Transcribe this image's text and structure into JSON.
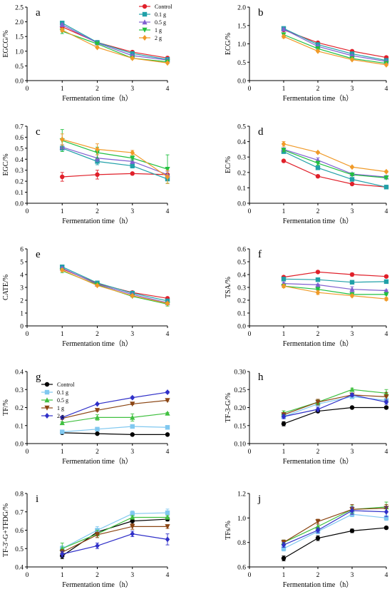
{
  "figure": {
    "title": "",
    "xlabel_common": "Fermentation time（h）"
  },
  "legend_top": {
    "items": [
      {
        "name": "Control",
        "color": "#e0202a",
        "marker": "circle"
      },
      {
        "name": "0.1 g",
        "color": "#20a0a8",
        "marker": "square"
      },
      {
        "name": "0.5 g",
        "color": "#8060d0",
        "marker": "triangle-up"
      },
      {
        "name": "1 g",
        "color": "#20c040",
        "marker": "triangle-down"
      },
      {
        "name": "2 g",
        "color": "#f09a28",
        "marker": "diamond"
      }
    ]
  },
  "legend_bottom": {
    "items": [
      {
        "name": "Control",
        "color": "#000000",
        "marker": "circle"
      },
      {
        "name": "0.1 g",
        "color": "#80c8f0",
        "marker": "square"
      },
      {
        "name": "0.5 g",
        "color": "#40c040",
        "marker": "triangle-up"
      },
      {
        "name": "1 g",
        "color": "#8b4513",
        "marker": "triangle-down"
      },
      {
        "name": "2 g",
        "color": "#3030c8",
        "marker": "diamond"
      }
    ]
  },
  "chart_data": [
    {
      "panel": "a",
      "type": "line",
      "palette": "top",
      "xlabel": "Fermentation time（h）",
      "ylabel": "EGCG/%",
      "xlim": [
        0,
        4
      ],
      "xticks": [
        0,
        1,
        2,
        3,
        4
      ],
      "ylim": [
        0,
        2.5
      ],
      "yticks": [
        0,
        0.5,
        1.0,
        1.5,
        2.0,
        2.5
      ],
      "ydecimals": 1,
      "x": [
        1,
        2,
        3,
        4
      ],
      "series": [
        {
          "name": "Control",
          "values": [
            1.83,
            1.3,
            0.97,
            0.77
          ],
          "err": [
            0.06,
            0.03,
            0.03,
            0.02
          ]
        },
        {
          "name": "0.1 g",
          "values": [
            1.96,
            1.3,
            0.92,
            0.72
          ],
          "err": [
            0.04,
            0.03,
            0.03,
            0.02
          ]
        },
        {
          "name": "0.5 g",
          "values": [
            1.9,
            1.28,
            0.85,
            0.7
          ],
          "err": [
            0.04,
            0.03,
            0.03,
            0.02
          ]
        },
        {
          "name": "1 g",
          "values": [
            1.68,
            1.25,
            0.76,
            0.64
          ],
          "err": [
            0.08,
            0.03,
            0.03,
            0.02
          ]
        },
        {
          "name": "2 g",
          "values": [
            1.72,
            1.13,
            0.76,
            0.6
          ],
          "err": [
            0.06,
            0.03,
            0.02,
            0.02
          ]
        }
      ]
    },
    {
      "panel": "b",
      "type": "line",
      "palette": "top",
      "xlabel": "Fermentation time（h）",
      "ylabel": "ECG/%",
      "xlim": [
        0,
        4
      ],
      "xticks": [
        0,
        1,
        2,
        3,
        4
      ],
      "ylim": [
        0,
        2.0
      ],
      "yticks": [
        0,
        0.5,
        1.0,
        1.5,
        2.0
      ],
      "ydecimals": 1,
      "x": [
        1,
        2,
        3,
        4
      ],
      "series": [
        {
          "name": "Control",
          "values": [
            1.38,
            1.03,
            0.8,
            0.63
          ],
          "err": [
            0.03,
            0.02,
            0.02,
            0.02
          ]
        },
        {
          "name": "0.1 g",
          "values": [
            1.42,
            0.98,
            0.73,
            0.55
          ],
          "err": [
            0.03,
            0.02,
            0.02,
            0.02
          ]
        },
        {
          "name": "0.5 g",
          "values": [
            1.4,
            0.93,
            0.68,
            0.52
          ],
          "err": [
            0.03,
            0.02,
            0.02,
            0.02
          ]
        },
        {
          "name": "1 g",
          "values": [
            1.25,
            0.87,
            0.6,
            0.47
          ],
          "err": [
            0.04,
            0.02,
            0.02,
            0.02
          ]
        },
        {
          "name": "2 g",
          "values": [
            1.2,
            0.8,
            0.57,
            0.43
          ],
          "err": [
            0.04,
            0.02,
            0.02,
            0.02
          ]
        }
      ]
    },
    {
      "panel": "c",
      "type": "line",
      "palette": "top",
      "xlabel": "Fermentation time（h）",
      "ylabel": "EGC/%",
      "xlim": [
        0,
        4
      ],
      "xticks": [
        0,
        1,
        2,
        3,
        4
      ],
      "ylim": [
        0,
        0.7
      ],
      "yticks": [
        0,
        0.1,
        0.2,
        0.3,
        0.4,
        0.5,
        0.6,
        0.7
      ],
      "ydecimals": 1,
      "x": [
        1,
        2,
        3,
        4
      ],
      "series": [
        {
          "name": "Control",
          "values": [
            0.24,
            0.26,
            0.27,
            0.26
          ],
          "err": [
            0.04,
            0.04,
            0.01,
            0.04
          ]
        },
        {
          "name": "0.1 g",
          "values": [
            0.5,
            0.38,
            0.34,
            0.22
          ],
          "err": [
            0.03,
            0.03,
            0.02,
            0.04
          ]
        },
        {
          "name": "0.5 g",
          "values": [
            0.51,
            0.41,
            0.38,
            0.26
          ],
          "err": [
            0.02,
            0.03,
            0.02,
            0.03
          ]
        },
        {
          "name": "1 g",
          "values": [
            0.57,
            0.46,
            0.41,
            0.31
          ],
          "err": [
            0.1,
            0.05,
            0.02,
            0.13
          ]
        },
        {
          "name": "2 g",
          "values": [
            0.58,
            0.49,
            0.46,
            0.24
          ],
          "err": [
            0.05,
            0.05,
            0.02,
            0.06
          ]
        }
      ]
    },
    {
      "panel": "d",
      "type": "line",
      "palette": "top",
      "xlabel": "Fermentation time（h）",
      "ylabel": "EC/%",
      "xlim": [
        0,
        4
      ],
      "xticks": [
        0,
        1,
        2,
        3,
        4
      ],
      "ylim": [
        0,
        0.5
      ],
      "yticks": [
        0,
        0.1,
        0.2,
        0.3,
        0.4,
        0.5
      ],
      "ydecimals": 1,
      "x": [
        1,
        2,
        3,
        4
      ],
      "series": [
        {
          "name": "Control",
          "values": [
            0.275,
            0.175,
            0.125,
            0.105
          ],
          "err": [
            0.005,
            0.004,
            0.004,
            0.004
          ]
        },
        {
          "name": "0.1 g",
          "values": [
            0.335,
            0.23,
            0.155,
            0.105
          ],
          "err": [
            0.006,
            0.01,
            0.005,
            0.004
          ]
        },
        {
          "name": "0.5 g",
          "values": [
            0.35,
            0.28,
            0.19,
            0.17
          ],
          "err": [
            0.01,
            0.015,
            0.006,
            0.01
          ]
        },
        {
          "name": "1 g",
          "values": [
            0.345,
            0.26,
            0.185,
            0.165
          ],
          "err": [
            0.01,
            0.012,
            0.006,
            0.008
          ]
        },
        {
          "name": "2 g",
          "values": [
            0.385,
            0.33,
            0.235,
            0.205
          ],
          "err": [
            0.015,
            0.006,
            0.005,
            0.006
          ]
        }
      ]
    },
    {
      "panel": "e",
      "type": "line",
      "palette": "top",
      "xlabel": "Fermentation time（h）",
      "ylabel": "CATE/%",
      "xlim": [
        0,
        4
      ],
      "xticks": [
        0,
        1,
        2,
        3,
        4
      ],
      "ylim": [
        0,
        6
      ],
      "yticks": [
        0,
        1,
        2,
        3,
        4,
        5,
        6
      ],
      "ydecimals": 0,
      "x": [
        1,
        2,
        3,
        4
      ],
      "series": [
        {
          "name": "Control",
          "values": [
            4.45,
            3.3,
            2.6,
            2.15
          ],
          "err": [
            0.1,
            0.06,
            0.06,
            0.08
          ]
        },
        {
          "name": "0.1 g",
          "values": [
            4.6,
            3.35,
            2.55,
            1.95
          ],
          "err": [
            0.08,
            0.06,
            0.06,
            0.08
          ]
        },
        {
          "name": "0.5 g",
          "values": [
            4.5,
            3.25,
            2.45,
            1.8
          ],
          "err": [
            0.08,
            0.06,
            0.06,
            0.08
          ]
        },
        {
          "name": "1 g",
          "values": [
            4.3,
            3.2,
            2.3,
            1.7
          ],
          "err": [
            0.15,
            0.06,
            0.06,
            0.15
          ]
        },
        {
          "name": "2 g",
          "values": [
            4.35,
            3.15,
            2.35,
            1.75
          ],
          "err": [
            0.1,
            0.06,
            0.06,
            0.08
          ]
        }
      ]
    },
    {
      "panel": "f",
      "type": "line",
      "palette": "top",
      "xlabel": "Fermentation time（h）",
      "ylabel": "TSA/%",
      "xlim": [
        0,
        4
      ],
      "xticks": [
        0,
        1,
        2,
        3,
        4
      ],
      "ylim": [
        0,
        0.6
      ],
      "yticks": [
        0,
        0.1,
        0.2,
        0.3,
        0.4,
        0.5,
        0.6
      ],
      "ydecimals": 1,
      "x": [
        1,
        2,
        3,
        4
      ],
      "series": [
        {
          "name": "Control",
          "values": [
            0.38,
            0.42,
            0.4,
            0.385
          ],
          "err": [
            0.01,
            0.005,
            0.012,
            0.006
          ]
        },
        {
          "name": "0.1 g",
          "values": [
            0.365,
            0.36,
            0.34,
            0.345
          ],
          "err": [
            0.008,
            0.005,
            0.005,
            0.005
          ]
        },
        {
          "name": "0.5 g",
          "values": [
            0.33,
            0.32,
            0.285,
            0.275
          ],
          "err": [
            0.01,
            0.006,
            0.02,
            0.005
          ]
        },
        {
          "name": "1 g",
          "values": [
            0.31,
            0.285,
            0.245,
            0.245
          ],
          "err": [
            0.012,
            0.006,
            0.008,
            0.005
          ]
        },
        {
          "name": "2 g",
          "values": [
            0.31,
            0.26,
            0.235,
            0.21
          ],
          "err": [
            0.012,
            0.015,
            0.008,
            0.012
          ]
        }
      ]
    },
    {
      "panel": "g",
      "type": "line",
      "palette": "bottom",
      "xlabel": "Fermentation time（h）",
      "ylabel": "TF/%",
      "xlim": [
        0,
        4
      ],
      "xticks": [
        0,
        1,
        2,
        3,
        4
      ],
      "ylim": [
        0,
        0.4
      ],
      "yticks": [
        0,
        0.1,
        0.2,
        0.3,
        0.4
      ],
      "ydecimals": 1,
      "x": [
        1,
        2,
        3,
        4
      ],
      "series": [
        {
          "name": "Control",
          "values": [
            0.06,
            0.055,
            0.05,
            0.05
          ],
          "err": [
            0.004,
            0.003,
            0.003,
            0.003
          ]
        },
        {
          "name": "0.1 g",
          "values": [
            0.065,
            0.08,
            0.095,
            0.09
          ],
          "err": [
            0.004,
            0.004,
            0.005,
            0.004
          ]
        },
        {
          "name": "0.5 g",
          "values": [
            0.115,
            0.145,
            0.145,
            0.168
          ],
          "err": [
            0.006,
            0.015,
            0.02,
            0.004
          ]
        },
        {
          "name": "1 g",
          "values": [
            0.14,
            0.185,
            0.22,
            0.24
          ],
          "err": [
            0.006,
            0.006,
            0.004,
            0.004
          ]
        },
        {
          "name": "2 g",
          "values": [
            0.145,
            0.22,
            0.255,
            0.285
          ],
          "err": [
            0.006,
            0.004,
            0.006,
            0.006
          ]
        }
      ]
    },
    {
      "panel": "h",
      "type": "line",
      "palette": "bottom",
      "xlabel": "Fermentation time（h）",
      "ylabel": "TF-3-G/%",
      "xlim": [
        0,
        4
      ],
      "xticks": [
        0,
        1,
        2,
        3,
        4
      ],
      "ylim": [
        0.1,
        0.3
      ],
      "yticks": [
        0.1,
        0.15,
        0.2,
        0.25,
        0.3
      ],
      "ydecimals": 2,
      "x": [
        1,
        2,
        3,
        4
      ],
      "series": [
        {
          "name": "Control",
          "values": [
            0.155,
            0.19,
            0.2,
            0.2
          ],
          "err": [
            0.006,
            0.004,
            0.002,
            0.004
          ]
        },
        {
          "name": "0.1 g",
          "values": [
            0.175,
            0.21,
            0.23,
            0.22
          ],
          "err": [
            0.005,
            0.005,
            0.005,
            0.005
          ]
        },
        {
          "name": "0.5 g",
          "values": [
            0.185,
            0.215,
            0.25,
            0.24
          ],
          "err": [
            0.006,
            0.006,
            0.004,
            0.01
          ]
        },
        {
          "name": "1 g",
          "values": [
            0.18,
            0.215,
            0.235,
            0.23
          ],
          "err": [
            0.006,
            0.008,
            0.004,
            0.012
          ]
        },
        {
          "name": "2 g",
          "values": [
            0.175,
            0.195,
            0.235,
            0.215
          ],
          "err": [
            0.006,
            0.006,
            0.004,
            0.006
          ]
        }
      ]
    },
    {
      "panel": "i",
      "type": "line",
      "palette": "bottom",
      "xlabel": "Fermentation time（h）",
      "ylabel": "TF-3'-G+TFDG/%",
      "xlim": [
        0,
        4
      ],
      "xticks": [
        0,
        1,
        2,
        3,
        4
      ],
      "ylim": [
        0.4,
        0.8
      ],
      "yticks": [
        0.4,
        0.5,
        0.6,
        0.7,
        0.8
      ],
      "ydecimals": 1,
      "x": [
        1,
        2,
        3,
        4
      ],
      "series": [
        {
          "name": "Control",
          "values": [
            0.46,
            0.59,
            0.65,
            0.66
          ],
          "err": [
            0.015,
            0.015,
            0.015,
            0.01
          ]
        },
        {
          "name": "0.1 g",
          "values": [
            0.5,
            0.6,
            0.69,
            0.695
          ],
          "err": [
            0.015,
            0.02,
            0.015,
            0.02
          ]
        },
        {
          "name": "0.5 g",
          "values": [
            0.5,
            0.58,
            0.67,
            0.67
          ],
          "err": [
            0.03,
            0.02,
            0.01,
            0.01
          ]
        },
        {
          "name": "1 g",
          "values": [
            0.48,
            0.575,
            0.62,
            0.62
          ],
          "err": [
            0.015,
            0.015,
            0.015,
            0.01
          ]
        },
        {
          "name": "2 g",
          "values": [
            0.47,
            0.515,
            0.58,
            0.55
          ],
          "err": [
            0.015,
            0.015,
            0.015,
            0.03
          ]
        }
      ]
    },
    {
      "panel": "j",
      "type": "line",
      "palette": "bottom",
      "xlabel": "Fermentation time（h）",
      "ylabel": "TFs/%",
      "xlim": [
        0,
        4
      ],
      "xticks": [
        0,
        1,
        2,
        3,
        4
      ],
      "ylim": [
        0.6,
        1.2
      ],
      "yticks": [
        0.6,
        0.8,
        1.0,
        1.2
      ],
      "ydecimals": 1,
      "x": [
        1,
        2,
        3,
        4
      ],
      "series": [
        {
          "name": "Control",
          "values": [
            0.67,
            0.835,
            0.895,
            0.92
          ],
          "err": [
            0.02,
            0.02,
            0.015,
            0.01
          ]
        },
        {
          "name": "0.1 g",
          "values": [
            0.75,
            0.89,
            1.03,
            1.0
          ],
          "err": [
            0.02,
            0.02,
            0.02,
            0.02
          ]
        },
        {
          "name": "0.5 g",
          "values": [
            0.8,
            0.93,
            1.07,
            1.09
          ],
          "err": [
            0.02,
            0.02,
            0.03,
            0.04
          ]
        },
        {
          "name": "1 g",
          "values": [
            0.8,
            0.97,
            1.07,
            1.08
          ],
          "err": [
            0.02,
            0.02,
            0.04,
            0.03
          ]
        },
        {
          "name": "2 g",
          "values": [
            0.78,
            0.9,
            1.06,
            1.05
          ],
          "err": [
            0.02,
            0.02,
            0.03,
            0.04
          ]
        }
      ]
    }
  ]
}
